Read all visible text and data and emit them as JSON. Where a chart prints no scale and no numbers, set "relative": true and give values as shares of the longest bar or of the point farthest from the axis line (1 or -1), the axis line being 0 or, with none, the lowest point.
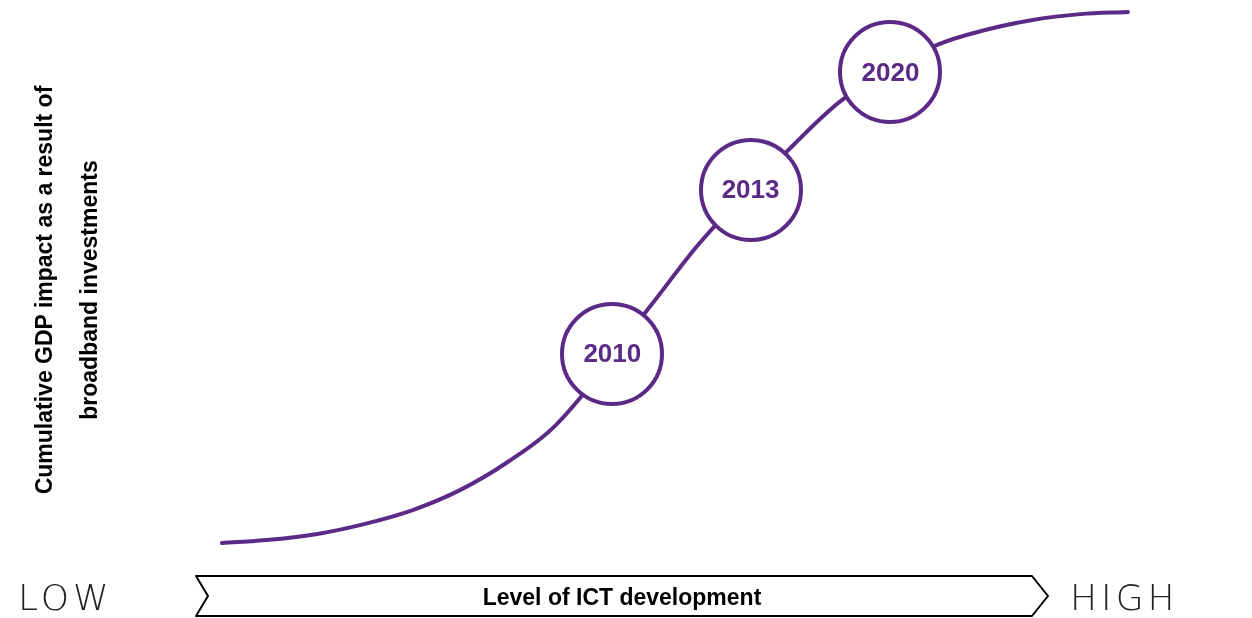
{
  "chart_data": {
    "type": "line",
    "relative": true,
    "marker": "none",
    "xlabel": "Level of ICT development",
    "ylabel": "Cumulative GDP impact as a result of broadband investments",
    "categories": [
      null,
      null,
      null,
      null,
      null,
      null,
      null,
      null,
      null,
      null,
      null,
      null,
      null,
      null,
      null,
      null,
      null,
      null,
      null,
      null
    ],
    "series": [
      {
        "color": "#5b2a86",
        "values": [
          0,
          0.006,
          0.017,
          0.036,
          0.062,
          0.1,
          0.153,
          0.222,
          null,
          0.448,
          0.563,
          null,
          0.751,
          0.834,
          null,
          0.938,
          0.966,
          0.985,
          0.996,
          1
        ]
      }
    ],
    "annotations": [
      {
        "text": "2010",
        "y": 0.356
      },
      {
        "text": "2013",
        "y": 0.665
      },
      {
        "text": "2020",
        "y": 0.887
      },
      "LOW",
      "HIGH"
    ]
  }
}
